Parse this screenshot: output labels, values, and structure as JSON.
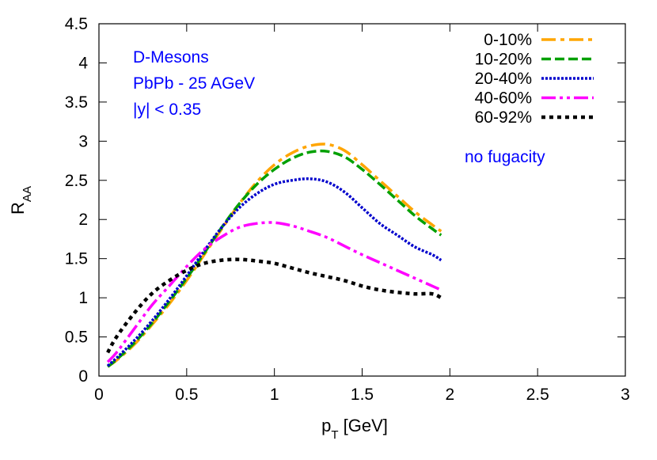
{
  "chart_data": {
    "type": "line",
    "title": "",
    "xlabel": {
      "main": "p",
      "sub": "T",
      "unit": " [GeV]"
    },
    "ylabel": {
      "main": "R",
      "sub": "AA"
    },
    "xlim": [
      0,
      3
    ],
    "ylim": [
      0,
      4.5
    ],
    "xticks": [
      0,
      0.5,
      1,
      1.5,
      2,
      2.5,
      3
    ],
    "xtick_labels": [
      "0",
      "0.5",
      "1",
      "1.5",
      "2",
      "2.5",
      "3"
    ],
    "yticks": [
      0,
      0.5,
      1,
      1.5,
      2,
      2.5,
      3,
      3.5,
      4,
      4.5
    ],
    "ytick_labels": [
      "0",
      "0.5",
      "1",
      "1.5",
      "2",
      "2.5",
      "3",
      "3.5",
      "4",
      "4.5"
    ],
    "grid": false,
    "legend_position": "top-right",
    "annotations": {
      "system_lines": [
        "D-Mesons",
        "PbPb - 25 AGeV",
        "|y| < 0.35"
      ],
      "note": "no fugacity",
      "color": "#0000ff"
    },
    "series": [
      {
        "name": "0-10%",
        "color": "#ffa500",
        "dash": "dashdot",
        "x": [
          0.05,
          0.1,
          0.2,
          0.3,
          0.4,
          0.5,
          0.6,
          0.7,
          0.8,
          0.9,
          1.0,
          1.1,
          1.2,
          1.3,
          1.4,
          1.5,
          1.6,
          1.7,
          1.8,
          1.9,
          1.95
        ],
        "y": [
          0.12,
          0.2,
          0.4,
          0.65,
          0.92,
          1.22,
          1.55,
          1.88,
          2.2,
          2.48,
          2.7,
          2.85,
          2.94,
          2.96,
          2.88,
          2.7,
          2.5,
          2.3,
          2.1,
          1.93,
          1.85
        ]
      },
      {
        "name": "10-20%",
        "color": "#00a000",
        "dash": "dashed",
        "x": [
          0.05,
          0.1,
          0.2,
          0.3,
          0.4,
          0.5,
          0.6,
          0.7,
          0.8,
          0.9,
          1.0,
          1.1,
          1.2,
          1.3,
          1.4,
          1.5,
          1.6,
          1.7,
          1.8,
          1.9,
          1.95
        ],
        "y": [
          0.12,
          0.21,
          0.42,
          0.67,
          0.95,
          1.25,
          1.57,
          1.9,
          2.2,
          2.45,
          2.64,
          2.78,
          2.86,
          2.87,
          2.8,
          2.64,
          2.45,
          2.25,
          2.05,
          1.88,
          1.8
        ]
      },
      {
        "name": "20-40%",
        "color": "#0000cc",
        "dash": "dotted",
        "x": [
          0.05,
          0.1,
          0.2,
          0.3,
          0.4,
          0.5,
          0.6,
          0.7,
          0.8,
          0.9,
          1.0,
          1.1,
          1.2,
          1.3,
          1.4,
          1.5,
          1.6,
          1.7,
          1.8,
          1.9,
          1.95
        ],
        "y": [
          0.13,
          0.23,
          0.45,
          0.7,
          0.98,
          1.28,
          1.6,
          1.9,
          2.15,
          2.33,
          2.45,
          2.5,
          2.52,
          2.48,
          2.35,
          2.15,
          1.95,
          1.8,
          1.65,
          1.55,
          1.48
        ]
      },
      {
        "name": "40-60%",
        "color": "#ff00ff",
        "dash": "dashdotdot",
        "x": [
          0.05,
          0.1,
          0.2,
          0.3,
          0.4,
          0.5,
          0.6,
          0.7,
          0.8,
          0.9,
          1.0,
          1.1,
          1.2,
          1.3,
          1.4,
          1.5,
          1.6,
          1.7,
          1.8,
          1.9,
          1.95
        ],
        "y": [
          0.18,
          0.3,
          0.6,
          0.9,
          1.15,
          1.4,
          1.62,
          1.78,
          1.9,
          1.95,
          1.96,
          1.92,
          1.85,
          1.77,
          1.66,
          1.55,
          1.45,
          1.35,
          1.25,
          1.15,
          1.1
        ]
      },
      {
        "name": "60-92%",
        "color": "#000000",
        "dash": "dotted-heavy",
        "x": [
          0.05,
          0.1,
          0.2,
          0.3,
          0.4,
          0.5,
          0.6,
          0.7,
          0.8,
          0.9,
          1.0,
          1.1,
          1.2,
          1.3,
          1.4,
          1.5,
          1.6,
          1.7,
          1.8,
          1.9,
          1.95
        ],
        "y": [
          0.3,
          0.5,
          0.8,
          1.05,
          1.22,
          1.35,
          1.44,
          1.48,
          1.49,
          1.47,
          1.44,
          1.38,
          1.32,
          1.27,
          1.22,
          1.15,
          1.1,
          1.07,
          1.05,
          1.05,
          1.0
        ]
      }
    ]
  }
}
